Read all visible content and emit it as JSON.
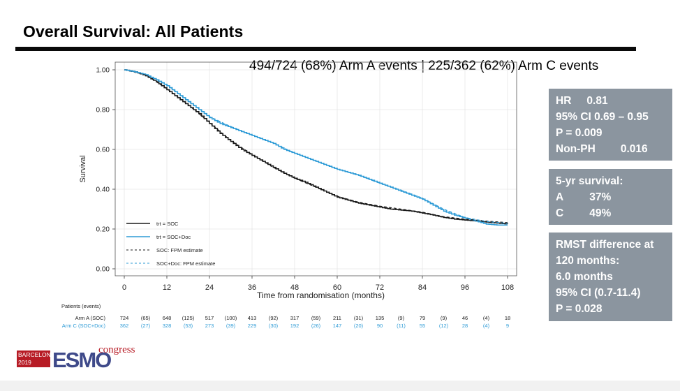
{
  "slide": {
    "title": "Overall Survival: All Patients",
    "events_text": "494/724 (68%) Arm A events | 225/362 (62%) Arm C events"
  },
  "stats": {
    "hr_box": {
      "hr_label": "HR",
      "hr_value": "0.81",
      "ci_text": "95% CI 0.69 – 0.95",
      "p_text": "P =  0.009",
      "nonph_label": "Non-PH",
      "nonph_value": "0.016"
    },
    "surv_box": {
      "heading": "5-yr survival:",
      "a_label": "A",
      "a_value": "37%",
      "c_label": "C",
      "c_value": "49%"
    },
    "rmst_box": {
      "line1": "RMST difference at",
      "line2": "120 months:",
      "line3": "6.0 months",
      "line4": "95% CI  (0.7-11.4)",
      "line5": "P = 0.028"
    }
  },
  "logo": {
    "city_line1": "BARCELONA",
    "city_line2": "2019",
    "brand": "ESMO",
    "suffix": "congress"
  },
  "chart_data": {
    "type": "line",
    "xlabel": "Time from randomisation (months)",
    "ylabel": "Survival",
    "xlim": [
      0,
      108
    ],
    "ylim": [
      0,
      1
    ],
    "x_ticks": [
      0,
      12,
      24,
      36,
      48,
      60,
      72,
      84,
      96,
      108
    ],
    "y_ticks": [
      0,
      0.2,
      0.4,
      0.6,
      0.8,
      1.0
    ],
    "y_tick_labels": [
      "0.00",
      "0.20",
      "0.40",
      "0.60",
      "0.80",
      "1.00"
    ],
    "grid": true,
    "legend_position": "bottom-left",
    "colors": {
      "soc": "#1a1a1a",
      "doc": "#2e9bd6"
    },
    "series": [
      {
        "name": "trt = SOC",
        "style": "solid",
        "color": "#1a1a1a",
        "x": [
          0,
          3,
          6,
          9,
          12,
          15,
          18,
          21,
          24,
          27,
          30,
          33,
          36,
          39,
          42,
          45,
          48,
          51,
          54,
          57,
          60,
          63,
          66,
          69,
          72,
          75,
          78,
          81,
          84,
          87,
          90,
          93,
          96,
          99,
          102,
          105,
          108
        ],
        "y": [
          1.0,
          0.99,
          0.97,
          0.94,
          0.9,
          0.86,
          0.82,
          0.78,
          0.73,
          0.68,
          0.64,
          0.6,
          0.57,
          0.54,
          0.51,
          0.48,
          0.455,
          0.435,
          0.41,
          0.385,
          0.36,
          0.345,
          0.33,
          0.32,
          0.31,
          0.3,
          0.295,
          0.29,
          0.28,
          0.27,
          0.258,
          0.25,
          0.245,
          0.24,
          0.235,
          0.23,
          0.225
        ]
      },
      {
        "name": "trt = SOC+Doc",
        "style": "solid",
        "color": "#2e9bd6",
        "x": [
          0,
          3,
          6,
          9,
          12,
          15,
          18,
          21,
          24,
          27,
          30,
          33,
          36,
          39,
          42,
          45,
          48,
          51,
          54,
          57,
          60,
          63,
          66,
          69,
          72,
          75,
          78,
          81,
          84,
          87,
          90,
          93,
          96,
          99,
          102,
          105,
          108
        ],
        "y": [
          1.0,
          0.99,
          0.975,
          0.95,
          0.92,
          0.88,
          0.84,
          0.8,
          0.76,
          0.73,
          0.71,
          0.69,
          0.67,
          0.65,
          0.63,
          0.6,
          0.58,
          0.56,
          0.54,
          0.52,
          0.5,
          0.485,
          0.47,
          0.45,
          0.43,
          0.41,
          0.39,
          0.37,
          0.35,
          0.32,
          0.29,
          0.27,
          0.255,
          0.24,
          0.225,
          0.22,
          0.22
        ]
      },
      {
        "name": "SOC: FPM estimate",
        "style": "dashed",
        "color": "#1a1a1a",
        "x": [
          0,
          6,
          12,
          18,
          24,
          30,
          36,
          42,
          48,
          54,
          60,
          66,
          72,
          78,
          84,
          90,
          96,
          102,
          108
        ],
        "y": [
          1.0,
          0.975,
          0.905,
          0.825,
          0.735,
          0.645,
          0.575,
          0.51,
          0.455,
          0.41,
          0.365,
          0.335,
          0.315,
          0.3,
          0.285,
          0.262,
          0.25,
          0.24,
          0.232
        ]
      },
      {
        "name": "SOC+Doc: FPM estimate",
        "style": "dashed",
        "color": "#2e9bd6",
        "x": [
          0,
          6,
          12,
          18,
          24,
          30,
          36,
          42,
          48,
          54,
          60,
          66,
          72,
          78,
          84,
          90,
          96,
          102,
          108
        ],
        "y": [
          1.0,
          0.978,
          0.925,
          0.845,
          0.765,
          0.715,
          0.672,
          0.632,
          0.582,
          0.542,
          0.502,
          0.47,
          0.43,
          0.395,
          0.355,
          0.3,
          0.258,
          0.238,
          0.228
        ]
      }
    ],
    "risk_table": {
      "header": "Patients (events)",
      "rows": [
        {
          "label": "Arm A (SOC)",
          "color": "#1a1a1a",
          "at_risk": [
            "724",
            "648",
            "517",
            "413",
            "317",
            "211",
            "135",
            "79",
            "46",
            "18"
          ],
          "events": [
            "(65)",
            "(125)",
            "(100)",
            "(92)",
            "(59)",
            "(31)",
            "(9)",
            "(9)",
            "(4)"
          ]
        },
        {
          "label": "Arm C (SOC+Doc)",
          "color": "#2e9bd6",
          "at_risk": [
            "362",
            "328",
            "273",
            "229",
            "192",
            "147",
            "90",
            "55",
            "28",
            "9"
          ],
          "events": [
            "(27)",
            "(53)",
            "(39)",
            "(30)",
            "(26)",
            "(20)",
            "(11)",
            "(12)",
            "(4)"
          ]
        }
      ]
    }
  }
}
